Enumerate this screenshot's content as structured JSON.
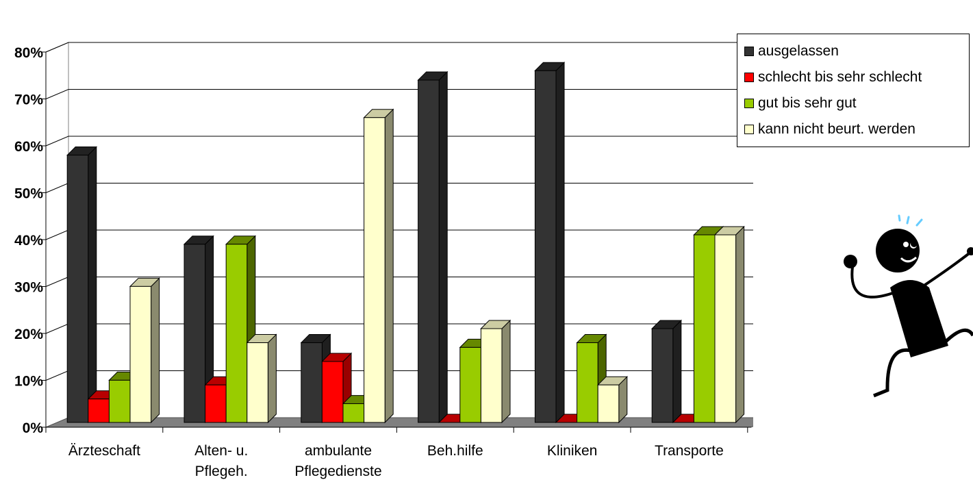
{
  "chart_data": {
    "type": "bar",
    "categories": [
      [
        "Ärzteschaft"
      ],
      [
        "Alten- u.",
        "Pflegeh."
      ],
      [
        "ambulante",
        "Pflegedienste"
      ],
      [
        "Beh.hilfe"
      ],
      [
        "Kliniken"
      ],
      [
        "Transporte"
      ]
    ],
    "series": [
      {
        "name": "ausgelassen",
        "color": "#333333",
        "side": "#1f1f1f",
        "top": "#222222",
        "values": [
          57,
          38,
          17,
          73,
          75,
          20
        ]
      },
      {
        "name": "schlecht bis sehr schlecht",
        "color": "#ff0000",
        "side": "#990000",
        "top": "#b80000",
        "values": [
          5,
          8,
          13,
          0,
          0,
          0
        ]
      },
      {
        "name": "gut bis sehr gut",
        "color": "#99cc00",
        "side": "#4d6600",
        "top": "#668800",
        "values": [
          9,
          38,
          4,
          16,
          17,
          40
        ]
      },
      {
        "name": "kann nicht beurt. werden",
        "color": "#ffffcc",
        "side": "#8a8a6e",
        "top": "#cccca3",
        "values": [
          29,
          17,
          65,
          20,
          8,
          40
        ]
      }
    ],
    "y_ticks": [
      "0%",
      "10%",
      "20%",
      "30%",
      "40%",
      "50%",
      "60%",
      "70%",
      "80%"
    ],
    "ylim": [
      0,
      80
    ],
    "grid": true,
    "legend_position": "right"
  },
  "clipart": {
    "icon": "dancing-stick-figure-icon"
  }
}
